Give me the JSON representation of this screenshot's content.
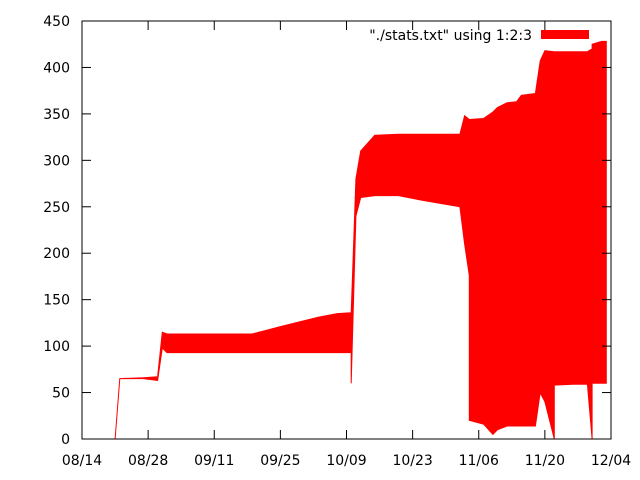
{
  "chart_data": {
    "type": "area",
    "title": "",
    "xlabel": "",
    "ylabel": "",
    "legend": {
      "label": "\"./stats.txt\" using 1:2:3",
      "placement": "top-right"
    },
    "color": "#ff0000",
    "xlim": [
      "2012-08-14",
      "2012-12-04"
    ],
    "ylim": [
      0,
      450
    ],
    "grid": false,
    "x_ticks": [
      "08/14",
      "08/28",
      "09/11",
      "09/25",
      "10/09",
      "10/23",
      "11/06",
      "11/20",
      "12/04"
    ],
    "y_ticks": [
      0,
      50,
      100,
      150,
      200,
      250,
      300,
      350,
      400,
      450
    ],
    "series": [
      {
        "columns": [
          "date",
          "low",
          "high"
        ],
        "points": [
          [
            "2012-08-21",
            0,
            0
          ],
          [
            "2012-08-22",
            65,
            65
          ],
          [
            "2012-08-27",
            65,
            66
          ],
          [
            "2012-08-30",
            63,
            67
          ],
          [
            "2012-08-31",
            98,
            115
          ],
          [
            "2012-09-01",
            93,
            113
          ],
          [
            "2012-09-05",
            93,
            113
          ],
          [
            "2012-09-19",
            93,
            113
          ],
          [
            "2012-09-25",
            93,
            121
          ],
          [
            "2012-10-03",
            93,
            131
          ],
          [
            "2012-10-07",
            93,
            135
          ],
          [
            "2012-10-10",
            93,
            136
          ],
          [
            "2012-10-10",
            60,
            136
          ],
          [
            "2012-10-11",
            240,
            280
          ],
          [
            "2012-10-12",
            260,
            310
          ],
          [
            "2012-10-15",
            262,
            327
          ],
          [
            "2012-10-20",
            262,
            328
          ],
          [
            "2012-10-25",
            257,
            328
          ],
          [
            "2012-11-02",
            250,
            328
          ],
          [
            "2012-11-03",
            210,
            348
          ],
          [
            "2012-11-04",
            176,
            344
          ],
          [
            "2012-11-04",
            20,
            344
          ],
          [
            "2012-11-07",
            16,
            345
          ],
          [
            "2012-11-09",
            5,
            352
          ],
          [
            "2012-11-10",
            10,
            357
          ],
          [
            "2012-11-12",
            14,
            362
          ],
          [
            "2012-11-14",
            14,
            363
          ],
          [
            "2012-11-15",
            14,
            370
          ],
          [
            "2012-11-18",
            14,
            372
          ],
          [
            "2012-11-19",
            50,
            407
          ],
          [
            "2012-11-20",
            40,
            418
          ],
          [
            "2012-11-22",
            0,
            417
          ],
          [
            "2012-11-22",
            58,
            417
          ],
          [
            "2012-11-26",
            59,
            417
          ],
          [
            "2012-11-29",
            59,
            417
          ],
          [
            "2012-11-30",
            0,
            420
          ],
          [
            "2012-11-30",
            60,
            425
          ],
          [
            "2012-12-02",
            60,
            428
          ],
          [
            "2012-12-03",
            60,
            428
          ]
        ]
      }
    ]
  }
}
